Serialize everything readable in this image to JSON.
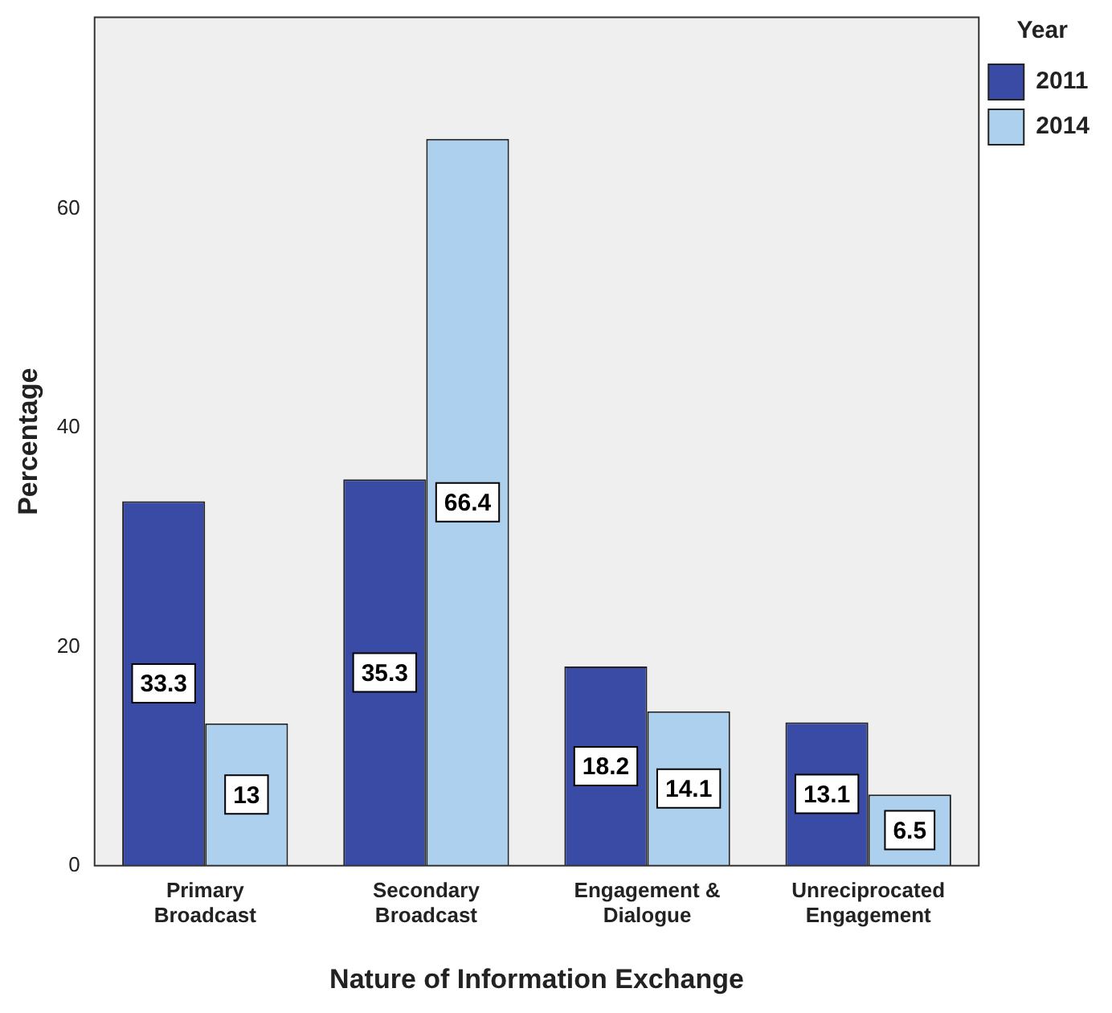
{
  "chart_data": {
    "type": "bar",
    "xlabel": "Nature of Information Exchange",
    "ylabel": "Percentage",
    "legend_title": "Year",
    "legend": "top right",
    "categories": [
      "Primary Broadcast",
      "Secondary Broadcast",
      "Engagement & Dialogue",
      "Unreciprocated Engagement"
    ],
    "series": [
      {
        "name": "2011",
        "color": "#3a4ba6",
        "values": [
          33.3,
          35.3,
          18.2,
          13.1
        ]
      },
      {
        "name": "2014",
        "color": "#add0ee",
        "values": [
          13,
          66.4,
          14.1,
          6.5
        ]
      }
    ],
    "ylim": [
      0,
      77.5
    ],
    "yticks": [
      0,
      20,
      40,
      60
    ],
    "grid": false,
    "data_labels": true
  }
}
